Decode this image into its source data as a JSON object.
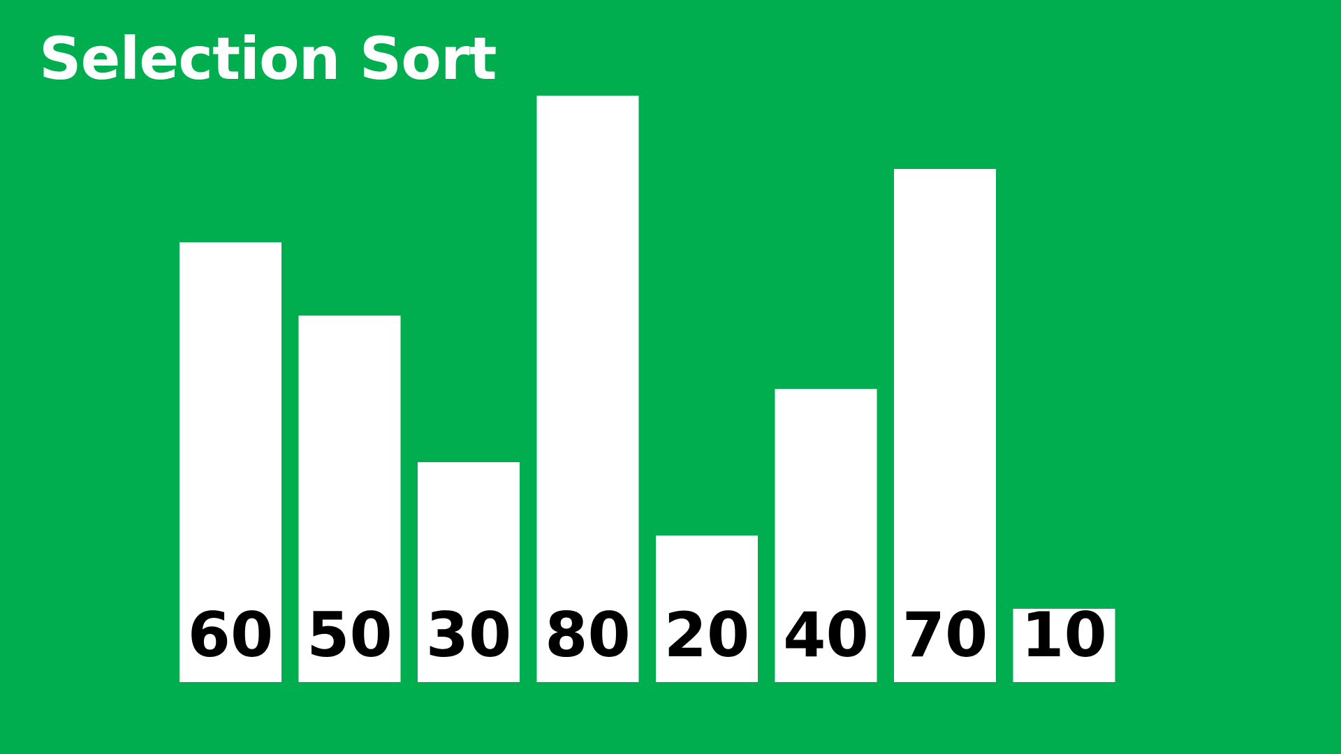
{
  "chart_data": {
    "type": "bar",
    "title": "Selection Sort",
    "categories": [
      "60",
      "50",
      "30",
      "80",
      "20",
      "40",
      "70",
      "10"
    ],
    "values": [
      60,
      50,
      30,
      80,
      20,
      40,
      70,
      10
    ],
    "xlabel": "",
    "ylabel": "",
    "grid": false,
    "legend": "none"
  },
  "colors": {
    "background": "#00AE50",
    "bar": "#FFFFFF",
    "label": "#000000",
    "title": "#FFFFFF"
  }
}
